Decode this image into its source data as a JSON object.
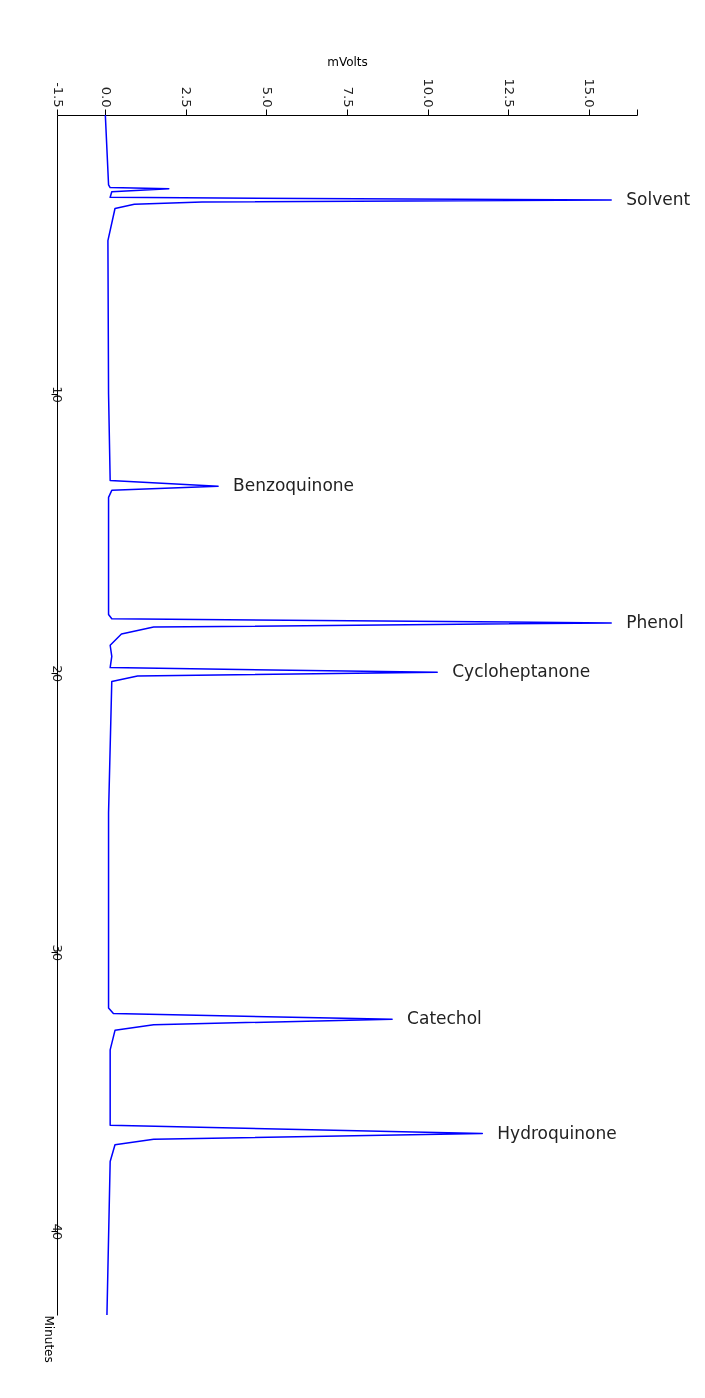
{
  "chart_data": {
    "type": "line",
    "orientation": "horizontal",
    "xlabel": "mVolts",
    "ylabel": "Minutes",
    "xlim": [
      -1.5,
      16.5
    ],
    "xticks": [
      -1.5,
      {
        "value": 0,
        "label": "0.0"
      },
      2.5,
      {
        "value": 5,
        "label": "5.0"
      },
      7.5,
      {
        "value": 10,
        "label": "10.0"
      },
      12.5,
      {
        "value": 15,
        "label": "15.0"
      },
      {
        "value": 16.5,
        "label": null
      }
    ],
    "ylim": [
      43,
      0
    ],
    "yticks": [
      10,
      20,
      30,
      40
    ],
    "x": [
      0,
      2.5,
      2.6,
      2.64,
      2.75,
      2.95,
      3.05,
      3.12,
      3.2,
      3.35,
      4.5,
      10,
      13.1,
      13.3,
      13.45,
      13.7,
      17.9,
      18.05,
      18.2,
      18.35,
      18.6,
      19.0,
      19.4,
      19.8,
      19.97,
      20.1,
      20.3,
      25,
      32.0,
      32.2,
      32.4,
      32.6,
      32.8,
      33.5,
      36.2,
      36.5,
      36.7,
      36.9,
      37.5,
      43
    ],
    "series": [
      {
        "color": "#0000ff",
        "values": [
          0.0,
          0.1,
          0.15,
          1.97,
          0.2,
          0.15,
          15.7,
          3.0,
          0.9,
          0.3,
          0.08,
          0.1,
          0.15,
          3.5,
          0.2,
          0.1,
          0.1,
          0.2,
          15.7,
          1.5,
          0.5,
          0.15,
          0.2,
          0.15,
          10.3,
          1.0,
          0.2,
          0.1,
          0.1,
          0.25,
          8.9,
          1.5,
          0.3,
          0.15,
          0.15,
          11.7,
          1.5,
          0.3,
          0.15,
          0.05
        ]
      }
    ],
    "annotations": [
      {
        "text": "Solvent",
        "x": 15.7,
        "y": 3.05
      },
      {
        "text": "Benzoquinone",
        "x": 3.5,
        "y": 13.3
      },
      {
        "text": "Phenol",
        "x": 15.7,
        "y": 18.2
      },
      {
        "text": "Cycloheptanone",
        "x": 10.3,
        "y": 19.97
      },
      {
        "text": "Catechol",
        "x": 8.9,
        "y": 32.4
      },
      {
        "text": "Hydroquinone",
        "x": 11.7,
        "y": 36.5
      }
    ]
  }
}
